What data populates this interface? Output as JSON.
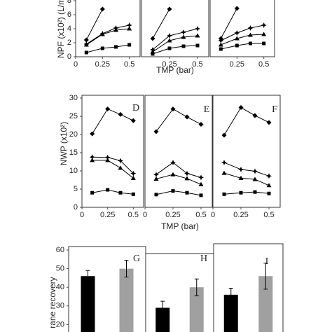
{
  "chart_data": [
    {
      "type": "line",
      "ylabel": "NPF (x10²) (L/m",
      "xlabel": "TMP (bar)",
      "xlim": [
        0,
        0.6
      ],
      "ylim": [
        0,
        8
      ],
      "xticks": [
        0,
        0.25,
        0.5
      ],
      "yticks": [
        0,
        2,
        4,
        6,
        8
      ],
      "x": [
        0.1,
        0.25,
        0.375,
        0.5
      ],
      "series": [
        {
          "color": "#000000",
          "marker": "diamond",
          "values": [
            2.4,
            6.8,
            null,
            null
          ]
        },
        {
          "color": "#000000",
          "marker": "star",
          "values": [
            1.8,
            3.3,
            4.1,
            4.5
          ]
        },
        {
          "color": "#000000",
          "marker": "triangle",
          "values": [
            1.7,
            3.2,
            3.8,
            4.0
          ]
        },
        {
          "color": "#000000",
          "marker": "square",
          "values": [
            0.6,
            1.2,
            1.4,
            1.7
          ]
        }
      ]
    },
    {
      "type": "line",
      "xlim": [
        0,
        0.6
      ],
      "ylim": [
        0,
        8
      ],
      "xticks": [
        0.25,
        0.5
      ],
      "x": [
        0.1,
        0.25,
        0.375,
        0.5
      ],
      "series": [
        {
          "color": "#000000",
          "marker": "diamond",
          "values": [
            2.6,
            6.8,
            null,
            null
          ]
        },
        {
          "color": "#000000",
          "marker": "star",
          "values": [
            1.0,
            3.0,
            3.5,
            4.0
          ]
        },
        {
          "color": "#000000",
          "marker": "triangle",
          "values": [
            0.7,
            2.3,
            2.8,
            3.0
          ]
        },
        {
          "color": "#000000",
          "marker": "square",
          "values": [
            0.4,
            1.2,
            1.5,
            1.6
          ]
        }
      ]
    },
    {
      "type": "line",
      "xlim": [
        0,
        0.6
      ],
      "ylim": [
        0,
        8
      ],
      "xticks": [
        0.25,
        0.5
      ],
      "x": [
        0.1,
        0.25,
        0.375,
        0.5
      ],
      "series": [
        {
          "color": "#000000",
          "marker": "diamond",
          "values": [
            2.6,
            6.9,
            null,
            null
          ]
        },
        {
          "color": "#000000",
          "marker": "star",
          "values": [
            2.3,
            3.4,
            4.1,
            4.5
          ]
        },
        {
          "color": "#000000",
          "marker": "triangle",
          "values": [
            1.7,
            2.6,
            3.1,
            3.2
          ]
        },
        {
          "color": "#000000",
          "marker": "square",
          "values": [
            1.1,
            1.6,
            1.9,
            1.9
          ]
        }
      ]
    },
    {
      "type": "line",
      "panel_label": "D",
      "ylabel": "NWP (x10²)",
      "xlabel": "TMP (bar)",
      "xlim": [
        0,
        0.6
      ],
      "ylim": [
        0,
        30
      ],
      "xticks": [
        0,
        0.25,
        0.5
      ],
      "yticks": [
        0,
        5,
        10,
        15,
        20,
        25,
        30
      ],
      "x": [
        0.1,
        0.25,
        0.375,
        0.5
      ],
      "series": [
        {
          "color": "#000000",
          "marker": "diamond",
          "values": [
            20.2,
            27.0,
            25.5,
            23.8
          ]
        },
        {
          "color": "#000000",
          "marker": "star",
          "values": [
            13.8,
            13.7,
            12.8,
            9.3
          ]
        },
        {
          "color": "#000000",
          "marker": "triangle",
          "values": [
            12.9,
            12.9,
            10.8,
            8.0
          ]
        },
        {
          "color": "#000000",
          "marker": "square",
          "values": [
            4.0,
            4.8,
            4.0,
            3.6
          ]
        }
      ]
    },
    {
      "type": "line",
      "panel_label": "E",
      "xlim": [
        0,
        0.6
      ],
      "ylim": [
        0,
        30
      ],
      "xticks": [
        0,
        0.25,
        0.5
      ],
      "x": [
        0.1,
        0.25,
        0.375,
        0.5
      ],
      "series": [
        {
          "color": "#000000",
          "marker": "diamond",
          "values": [
            20.8,
            27.0,
            24.8,
            22.8
          ]
        },
        {
          "color": "#000000",
          "marker": "star",
          "values": [
            9.0,
            12.3,
            9.3,
            8.2
          ]
        },
        {
          "color": "#000000",
          "marker": "triangle",
          "values": [
            7.8,
            9.0,
            7.9,
            6.3
          ]
        },
        {
          "color": "#000000",
          "marker": "square",
          "values": [
            3.5,
            4.5,
            4.0,
            3.3
          ]
        }
      ]
    },
    {
      "type": "line",
      "panel_label": "F",
      "xlim": [
        0,
        0.6
      ],
      "ylim": [
        0,
        30
      ],
      "xticks": [
        0,
        0.25,
        0.5
      ],
      "x": [
        0.1,
        0.25,
        0.375,
        0.5
      ],
      "series": [
        {
          "color": "#000000",
          "marker": "diamond",
          "values": [
            19.8,
            27.4,
            25.2,
            23.3
          ]
        },
        {
          "color": "#000000",
          "marker": "star",
          "values": [
            12.3,
            10.4,
            9.9,
            8.6
          ]
        },
        {
          "color": "#000000",
          "marker": "triangle",
          "values": [
            9.4,
            8.0,
            7.7,
            6.0
          ]
        },
        {
          "color": "#000000",
          "marker": "square",
          "values": [
            3.6,
            4.0,
            4.2,
            3.8
          ]
        }
      ]
    },
    {
      "type": "bar",
      "panel_label": "G",
      "ylabel": "rane recovery",
      "ylim": [
        16,
        60
      ],
      "yticks": [
        20,
        30,
        40,
        50,
        60
      ],
      "categories": [
        null,
        null
      ],
      "values": [
        46,
        50
      ],
      "errors": [
        3,
        4.5
      ],
      "colors": [
        "#000000",
        "#a0a0a0"
      ]
    },
    {
      "type": "bar",
      "panel_label": "H",
      "ylim": [
        16,
        60
      ],
      "categories": [
        null,
        null
      ],
      "values": [
        29,
        40
      ],
      "errors": [
        3.5,
        4.5
      ],
      "colors": [
        "#000000",
        "#a0a0a0"
      ]
    },
    {
      "type": "bar",
      "panel_label": "I",
      "ylim": [
        16,
        60
      ],
      "categories": [
        null,
        null
      ],
      "values": [
        36,
        46
      ],
      "errors": [
        3.5,
        7
      ],
      "colors": [
        "#000000",
        "#a0a0a0"
      ]
    }
  ]
}
